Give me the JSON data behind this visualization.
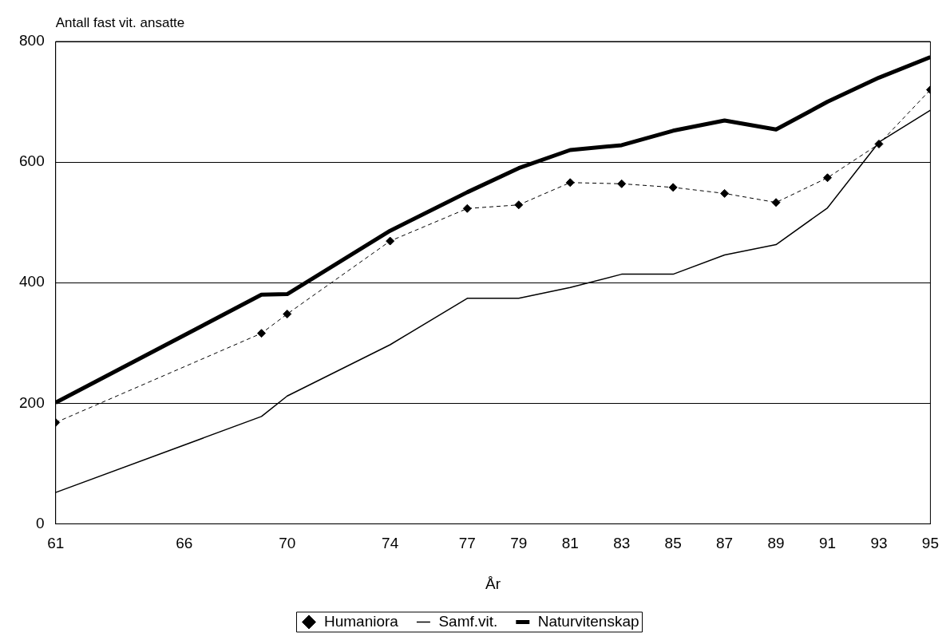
{
  "chart_data": {
    "type": "line",
    "ylabel": "Antall fast vit. ansatte",
    "xlabel": "År",
    "x": [
      61,
      69,
      70,
      74,
      77,
      79,
      81,
      83,
      85,
      87,
      89,
      91,
      93,
      95
    ],
    "series": [
      {
        "name": "Humaniora",
        "color": "#000000",
        "marker": "diamond",
        "line_style": "dashed",
        "values": [
          168,
          316,
          348,
          469,
          523,
          529,
          566,
          564,
          558,
          548,
          533,
          574,
          630,
          720
        ]
      },
      {
        "name": "Samf.vit.",
        "color": "#000000",
        "marker": "none",
        "line_style": "solid",
        "values": [
          52,
          178,
          212,
          297,
          374,
          374,
          392,
          414,
          414,
          446,
          463,
          524,
          633,
          686
        ]
      },
      {
        "name": "Naturvitenskap",
        "color": "#000000",
        "marker": "none",
        "line_style": "solid",
        "values": [
          201,
          380,
          381,
          486,
          550,
          590,
          620,
          628,
          652,
          669,
          654,
          700,
          740,
          774
        ]
      }
    ],
    "xlim": [
      61,
      95
    ],
    "xticks": [
      61,
      66,
      70,
      74,
      77,
      79,
      81,
      83,
      85,
      87,
      89,
      91,
      93,
      95
    ],
    "ylim": [
      0,
      800
    ],
    "yticks": [
      0,
      200,
      400,
      600,
      800
    ],
    "grid": "y",
    "legend": "bottom"
  }
}
